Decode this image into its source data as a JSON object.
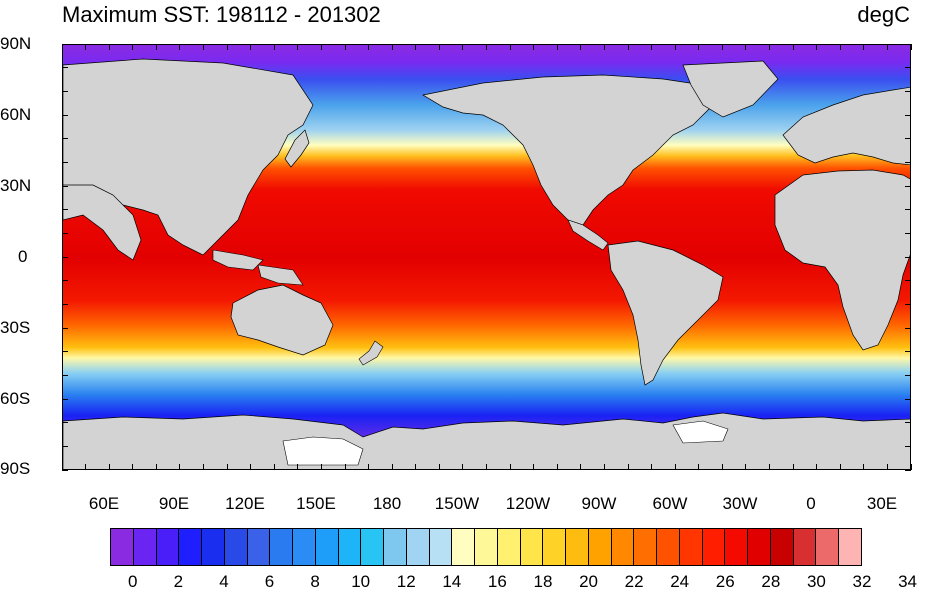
{
  "title": "Maximum SST: 198112 - 201302",
  "units": "degC",
  "lat_labels": [
    "90N",
    "60N",
    "30N",
    "0",
    "30S",
    "60S",
    "90S"
  ],
  "lon_labels": [
    "60E",
    "90E",
    "120E",
    "150E",
    "180",
    "150W",
    "120W",
    "90W",
    "60W",
    "30W",
    "0",
    "30E"
  ],
  "colorbar": {
    "labels": [
      "0",
      "2",
      "4",
      "6",
      "8",
      "10",
      "12",
      "14",
      "16",
      "18",
      "20",
      "22",
      "24",
      "26",
      "28",
      "30",
      "32",
      "34"
    ],
    "colors": [
      "#8a2be2",
      "#6a25f2",
      "#4a1ef8",
      "#1e1eff",
      "#1a2ef0",
      "#2a4ae8",
      "#3a62e8",
      "#2a7af0",
      "#2a8cf4",
      "#1e9ef8",
      "#1eb4f8",
      "#28c4f4",
      "#7ec8f0",
      "#a0d4f2",
      "#b8e0f4",
      "#fffec0",
      "#fff898",
      "#fff070",
      "#ffe44a",
      "#ffd228",
      "#ffbc10",
      "#ffa200",
      "#ff8800",
      "#ff6e00",
      "#ff5200",
      "#ff3600",
      "#ff1e00",
      "#f40a00",
      "#e00000",
      "#c80000",
      "#d83030",
      "#ec6a6a",
      "#ffb4b4"
    ]
  },
  "land_color": "#d3d3d3",
  "missing_color": "#ffffff"
}
